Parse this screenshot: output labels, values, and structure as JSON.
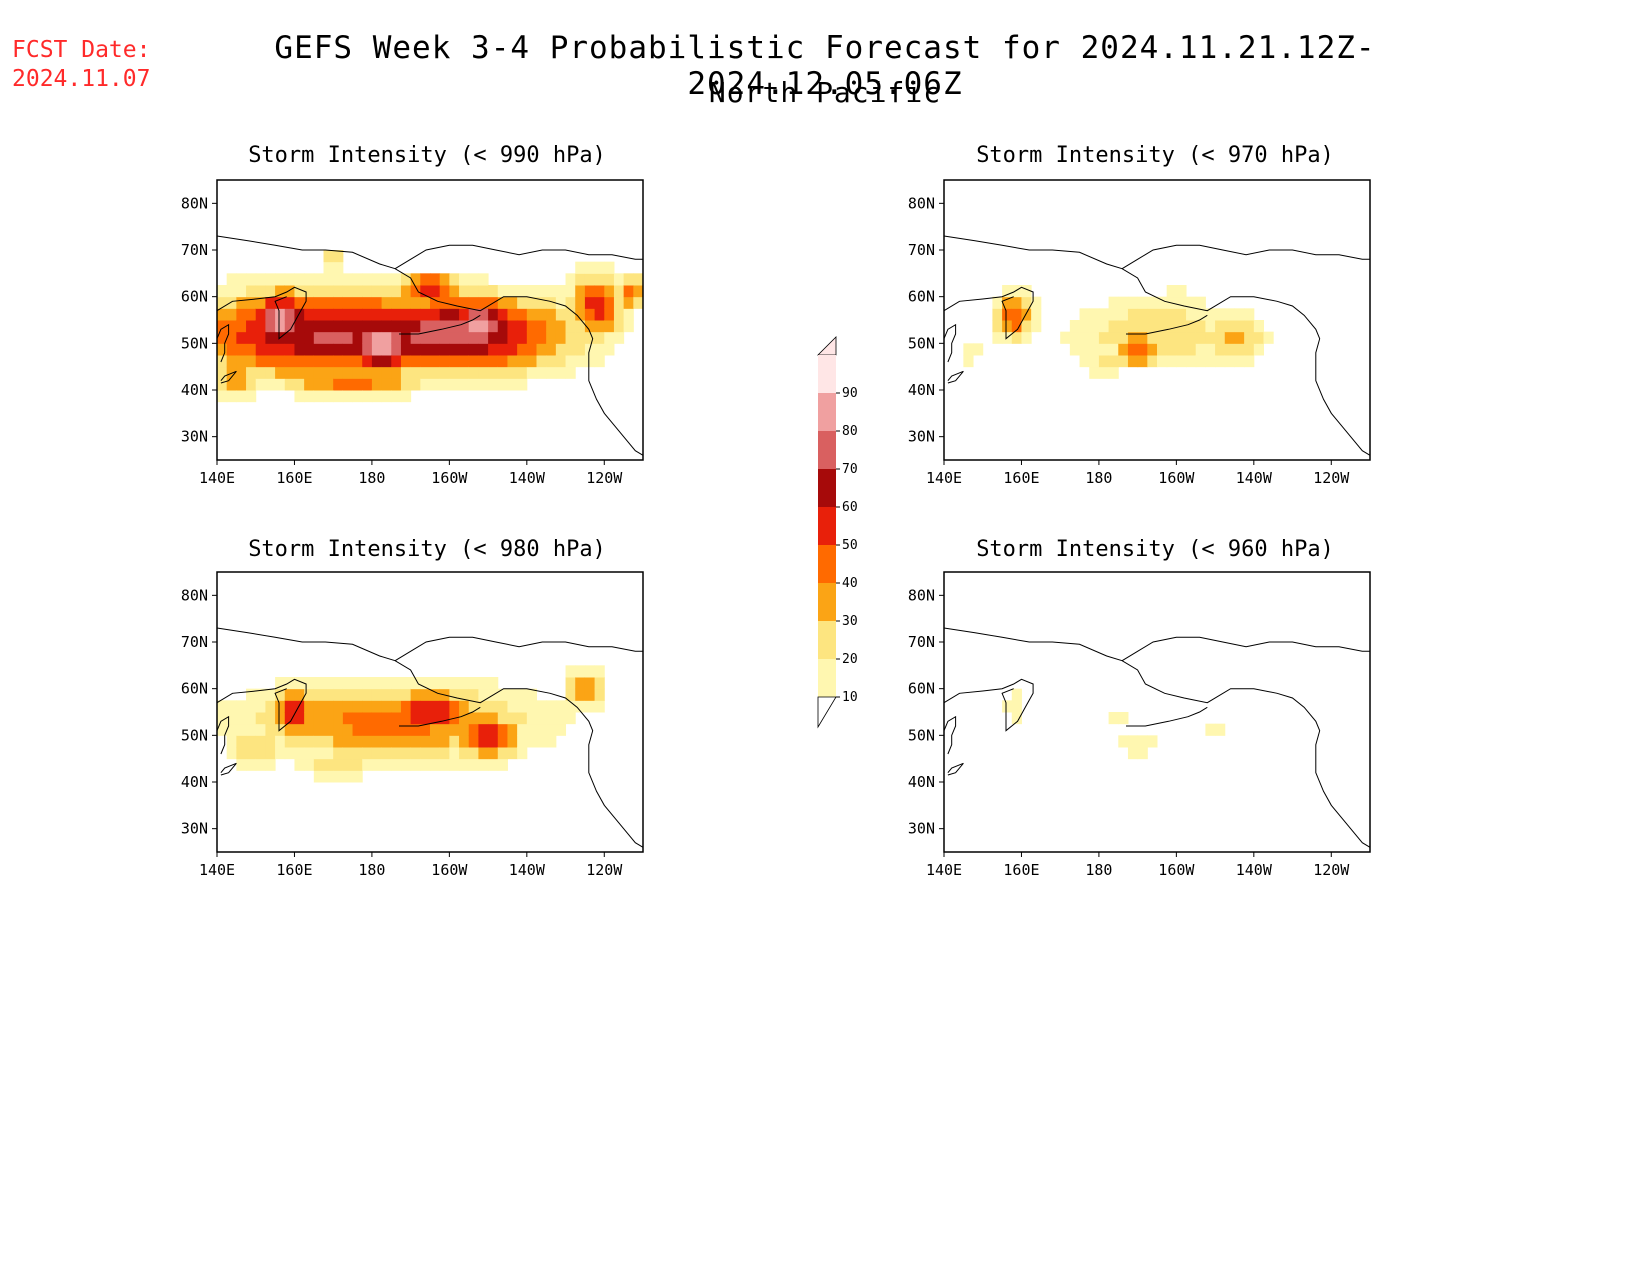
{
  "header": {
    "fcst_label": "FCST Date:",
    "fcst_date": "2024.11.07",
    "title": "GEFS Week 3-4 Probabilistic Forecast for 2024.11.21.12Z-2024.12.05.06Z",
    "region": "North Pacific"
  },
  "lat_labels": [
    "80N",
    "70N",
    "60N",
    "50N",
    "40N",
    "30N"
  ],
  "lon_labels": [
    "140E",
    "160E",
    "180",
    "160W",
    "140W",
    "120W"
  ],
  "panels": [
    {
      "id": "p990",
      "title": "Storm Intensity (< 990 hPa)"
    },
    {
      "id": "p970",
      "title": "Storm Intensity (< 970 hPa)"
    },
    {
      "id": "p980",
      "title": "Storm Intensity (< 980 hPa)"
    },
    {
      "id": "p960",
      "title": "Storm Intensity (< 960 hPa)"
    }
  ],
  "colorbar": {
    "levels": [
      "10",
      "20",
      "30",
      "40",
      "50",
      "60",
      "70",
      "80",
      "90"
    ],
    "colors": [
      "#fff7b0",
      "#fde580",
      "#fba415",
      "#ff6a00",
      "#e8200a",
      "#a60a0a",
      "#d96060",
      "#f0a0a0",
      "#ffe6e6"
    ]
  },
  "chart_data": [
    {
      "type": "heatmap",
      "title": "Storm Intensity (< 990 hPa)",
      "x_unit": "longitude",
      "y_unit": "latitude",
      "xlim": [
        "140E",
        "110W"
      ],
      "ylim": [
        "25N",
        "85N"
      ],
      "blobs": [
        {
          "lon": 170,
          "lat": 52,
          "rlon": 38,
          "rlat": 9,
          "p": 72
        },
        {
          "lon": 200,
          "lat": 52,
          "rlon": 30,
          "rlat": 8,
          "p": 78
        },
        {
          "lon": 157,
          "lat": 55,
          "rlon": 8,
          "rlat": 6,
          "p": 85
        },
        {
          "lon": 183,
          "lat": 50,
          "rlon": 10,
          "rlat": 6,
          "p": 88
        },
        {
          "lon": 208,
          "lat": 54,
          "rlon": 8,
          "rlat": 6,
          "p": 86
        },
        {
          "lon": 195,
          "lat": 62,
          "rlon": 8,
          "rlat": 3,
          "p": 62
        },
        {
          "lon": 238,
          "lat": 58,
          "rlon": 7,
          "rlat": 7,
          "p": 55
        },
        {
          "lon": 247,
          "lat": 61,
          "rlon": 3,
          "rlat": 4,
          "p": 45
        },
        {
          "lon": 145,
          "lat": 43,
          "rlon": 6,
          "rlat": 4,
          "p": 40
        },
        {
          "lon": 170,
          "lat": 68,
          "rlon": 1.5,
          "rlat": 2,
          "p": 55
        },
        {
          "lon": 175,
          "lat": 42,
          "rlon": 20,
          "rlat": 3,
          "p": 45
        }
      ]
    },
    {
      "type": "heatmap",
      "title": "Storm Intensity (< 970 hPa)",
      "x_unit": "longitude",
      "y_unit": "latitude",
      "xlim": [
        "140E",
        "110W"
      ],
      "ylim": [
        "25N",
        "85N"
      ],
      "blobs": [
        {
          "lon": 158,
          "lat": 56,
          "rlon": 5,
          "rlat": 5,
          "p": 50
        },
        {
          "lon": 195,
          "lat": 52,
          "rlon": 22,
          "rlat": 7,
          "p": 30
        },
        {
          "lon": 190,
          "lat": 49,
          "rlon": 6,
          "rlat": 4,
          "p": 48
        },
        {
          "lon": 215,
          "lat": 51,
          "rlon": 8,
          "rlat": 5,
          "p": 35
        },
        {
          "lon": 182,
          "lat": 46,
          "rlon": 6,
          "rlat": 3,
          "p": 25
        },
        {
          "lon": 147,
          "lat": 48,
          "rlon": 3,
          "rlat": 3,
          "p": 15
        },
        {
          "lon": 200,
          "lat": 58,
          "rlon": 8,
          "rlat": 4,
          "p": 20
        }
      ]
    },
    {
      "type": "heatmap",
      "title": "Storm Intensity (< 980 hPa)",
      "x_unit": "longitude",
      "y_unit": "latitude",
      "xlim": [
        "140E",
        "110W"
      ],
      "ylim": [
        "25N",
        "85N"
      ],
      "blobs": [
        {
          "lon": 185,
          "lat": 53,
          "rlon": 36,
          "rlat": 8,
          "p": 45
        },
        {
          "lon": 195,
          "lat": 55,
          "rlon": 12,
          "rlat": 5,
          "p": 62
        },
        {
          "lon": 160,
          "lat": 55,
          "rlon": 6,
          "rlat": 5,
          "p": 58
        },
        {
          "lon": 210,
          "lat": 50,
          "rlon": 8,
          "rlat": 5,
          "p": 60
        },
        {
          "lon": 150,
          "lat": 48,
          "rlon": 8,
          "rlat": 5,
          "p": 28
        },
        {
          "lon": 235,
          "lat": 60,
          "rlon": 5,
          "rlat": 4,
          "p": 38
        },
        {
          "lon": 172,
          "lat": 44,
          "rlon": 10,
          "rlat": 3,
          "p": 30
        }
      ]
    },
    {
      "type": "heatmap",
      "title": "Storm Intensity (< 960 hPa)",
      "x_unit": "longitude",
      "y_unit": "latitude",
      "xlim": [
        "140E",
        "110W"
      ],
      "ylim": [
        "25N",
        "85N"
      ],
      "blobs": [
        {
          "lon": 158,
          "lat": 56,
          "rlon": 2,
          "rlat": 4,
          "p": 22
        },
        {
          "lon": 190,
          "lat": 48,
          "rlon": 6,
          "rlat": 3,
          "p": 18
        },
        {
          "lon": 185,
          "lat": 54,
          "rlon": 5,
          "rlat": 2,
          "p": 14
        },
        {
          "lon": 210,
          "lat": 52,
          "rlon": 5,
          "rlat": 2,
          "p": 14
        },
        {
          "lon": 200,
          "lat": 48,
          "rlon": 3,
          "rlat": 2,
          "p": 13
        }
      ]
    }
  ]
}
